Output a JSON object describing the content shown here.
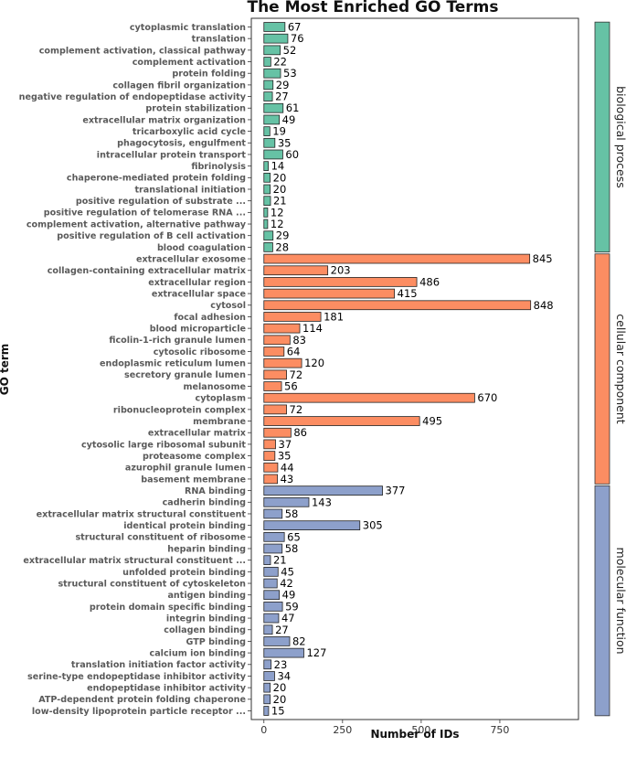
{
  "chart_data": {
    "type": "bar",
    "orientation": "horizontal",
    "title": "The Most Enriched GO Terms",
    "xlabel": "Number of IDs",
    "ylabel": "GO term",
    "xlim": [
      -40,
      1000
    ],
    "xticks": [
      0,
      250,
      500,
      750
    ],
    "grid": false,
    "colors": {
      "biological process": "#66c2a5",
      "cellular component": "#fc8d62",
      "molecular function": "#8da0cb"
    },
    "groups": [
      {
        "name": "biological process",
        "categories": [
          "cytoplasmic translation",
          "translation",
          "complement activation, classical pathway",
          "complement activation",
          "protein folding",
          "collagen fibril organization",
          "negative regulation of endopeptidase activity",
          "protein stabilization",
          "extracellular matrix organization",
          "tricarboxylic acid cycle",
          "phagocytosis, engulfment",
          "intracellular protein transport",
          "fibrinolysis",
          "chaperone-mediated protein folding",
          "translational initiation",
          "positive regulation of substrate ...",
          "positive regulation of telomerase RNA ...",
          "complement activation, alternative pathway",
          "positive regulation of B cell activation",
          "blood coagulation"
        ],
        "values": [
          67,
          76,
          52,
          22,
          53,
          29,
          27,
          61,
          49,
          19,
          35,
          60,
          14,
          20,
          20,
          21,
          12,
          12,
          29,
          28
        ]
      },
      {
        "name": "cellular component",
        "categories": [
          "extracellular exosome",
          "collagen-containing extracellular matrix",
          "extracellular region",
          "extracellular space",
          "cytosol",
          "focal adhesion",
          "blood microparticle",
          "ficolin-1-rich granule lumen",
          "cytosolic ribosome",
          "endoplasmic reticulum lumen",
          "secretory granule lumen",
          "melanosome",
          "cytoplasm",
          "ribonucleoprotein complex",
          "membrane",
          "extracellular matrix",
          "cytosolic large ribosomal subunit",
          "proteasome complex",
          "azurophil granule lumen",
          "basement membrane"
        ],
        "values": [
          845,
          203,
          486,
          415,
          848,
          181,
          114,
          83,
          64,
          120,
          72,
          56,
          670,
          72,
          495,
          86,
          37,
          35,
          44,
          43
        ]
      },
      {
        "name": "molecular function",
        "categories": [
          "RNA binding",
          "cadherin binding",
          "extracellular matrix structural constituent",
          "identical protein binding",
          "structural constituent of ribosome",
          "heparin binding",
          "extracellular matrix structural constituent ...",
          "unfolded protein binding",
          "structural constituent of cytoskeleton",
          "antigen binding",
          "protein domain specific binding",
          "integrin binding",
          "collagen binding",
          "GTP binding",
          "calcium ion binding",
          "translation initiation factor activity",
          "serine-type endopeptidase inhibitor activity",
          "endopeptidase inhibitor activity",
          "ATP-dependent protein folding chaperone",
          "low-density lipoprotein particle receptor ..."
        ],
        "values": [
          377,
          143,
          58,
          305,
          65,
          58,
          21,
          45,
          42,
          49,
          59,
          47,
          27,
          82,
          127,
          23,
          34,
          20,
          20,
          15
        ]
      }
    ]
  }
}
